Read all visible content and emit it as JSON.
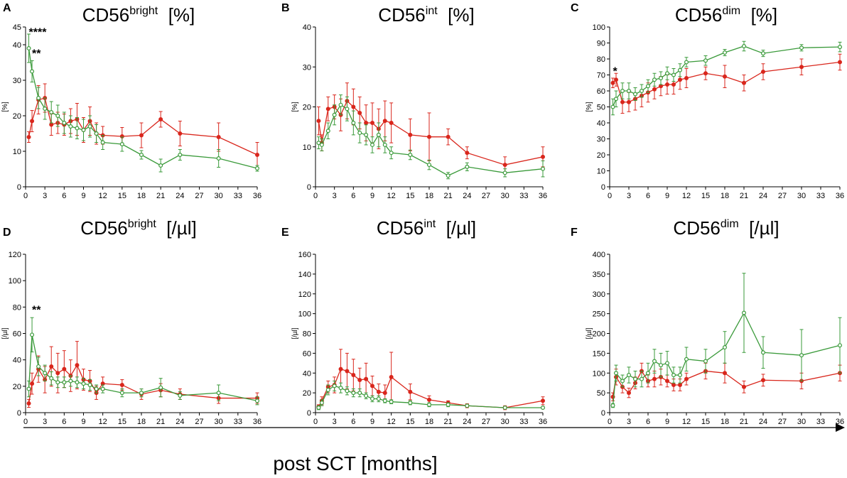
{
  "colors": {
    "red": "#d9261c",
    "green": "#3a9a3a",
    "axis": "#000000"
  },
  "x_caption": "post SCT [months]",
  "chart_data": [
    {
      "letter": "A",
      "type": "line",
      "title": {
        "base": "CD56",
        "sup": "bright",
        "unit": "[%]"
      },
      "ylabel": "[%]",
      "ylim": [
        0,
        45
      ],
      "yticks": [
        0,
        10,
        20,
        30,
        40,
        45
      ],
      "xlabel": "post SCT [months]",
      "xlim": [
        0,
        36
      ],
      "xticks": [
        0,
        3,
        6,
        9,
        12,
        15,
        18,
        21,
        24,
        27,
        30,
        33,
        36
      ],
      "x": [
        0.5,
        1,
        2,
        3,
        4,
        5,
        6,
        7,
        8,
        9,
        10,
        11,
        12,
        15,
        18,
        21,
        24,
        30,
        36
      ],
      "series": [
        {
          "name": "red",
          "color": "red",
          "marker": "filled",
          "values": [
            14,
            18.5,
            24.5,
            25,
            17.5,
            18,
            17.5,
            18.5,
            19,
            16,
            18.5,
            15,
            14.5,
            14.2,
            14.5,
            19,
            15,
            14,
            9
          ],
          "errors": [
            1.5,
            3,
            4,
            4,
            3,
            3,
            3,
            3.5,
            4.5,
            3.5,
            4,
            3,
            2.5,
            2.5,
            3.5,
            2.2,
            3.5,
            4,
            3.5
          ]
        },
        {
          "name": "green",
          "color": "green",
          "marker": "open",
          "values": [
            39,
            32.5,
            25,
            22,
            21,
            20,
            18,
            17,
            16.5,
            16,
            17,
            15,
            12.5,
            12,
            9,
            6,
            9,
            8,
            5.2
          ],
          "errors": [
            4,
            3,
            3,
            3,
            3,
            3,
            3,
            3,
            3,
            3,
            3,
            2.5,
            2,
            2,
            1.2,
            1.8,
            1.5,
            2.5,
            0.8
          ]
        }
      ],
      "annotations": [
        {
          "text": "****",
          "x": 0.5,
          "y": 42.5
        },
        {
          "text": "**",
          "x": 1,
          "y": 36.5
        }
      ]
    },
    {
      "letter": "B",
      "type": "line",
      "title": {
        "base": "CD56",
        "sup": "int",
        "unit": "[%]"
      },
      "ylabel": "[%]",
      "ylim": [
        0,
        40
      ],
      "yticks": [
        0,
        10,
        20,
        30,
        40
      ],
      "xlabel": "post SCT [months]",
      "xlim": [
        0,
        36
      ],
      "xticks": [
        0,
        3,
        6,
        9,
        12,
        15,
        18,
        21,
        24,
        27,
        30,
        33,
        36
      ],
      "x": [
        0.5,
        1,
        2,
        3,
        4,
        5,
        6,
        7,
        8,
        9,
        10,
        11,
        12,
        15,
        18,
        21,
        24,
        30,
        36
      ],
      "series": [
        {
          "name": "red",
          "color": "red",
          "marker": "filled",
          "values": [
            16.5,
            11,
            19.5,
            20,
            18,
            21.5,
            20,
            18.5,
            16,
            16,
            14.5,
            16.5,
            16,
            13,
            12.5,
            12.5,
            8.5,
            5.5,
            7.5
          ],
          "errors": [
            3.5,
            2,
            3,
            3,
            4,
            4.5,
            4.5,
            4,
            4.5,
            5,
            5,
            5,
            5,
            4,
            6,
            2,
            1.5,
            2,
            2.5
          ]
        },
        {
          "name": "green",
          "color": "green",
          "marker": "open",
          "values": [
            11,
            10.5,
            14,
            18,
            20.5,
            19.5,
            16,
            13.5,
            13,
            10.5,
            13,
            10.5,
            8.5,
            8,
            5.5,
            2.8,
            5,
            3.5,
            4.5
          ],
          "errors": [
            1.5,
            1.5,
            2,
            2.5,
            2.5,
            3,
            3,
            2.5,
            2.5,
            2,
            3,
            2,
            1.5,
            1.2,
            1.2,
            0.8,
            1,
            1,
            2
          ]
        }
      ],
      "annotations": []
    },
    {
      "letter": "C",
      "type": "line",
      "title": {
        "base": "CD56",
        "sup": "dim",
        "unit": "[%]"
      },
      "ylabel": "[%]",
      "ylim": [
        0,
        100
      ],
      "yticks": [
        0,
        10,
        20,
        30,
        40,
        50,
        60,
        70,
        80,
        90,
        100
      ],
      "xlabel": "post SCT [months]",
      "xlim": [
        0,
        36
      ],
      "xticks": [
        0,
        3,
        6,
        9,
        12,
        15,
        18,
        21,
        24,
        27,
        30,
        33,
        36
      ],
      "x": [
        0.5,
        1,
        2,
        3,
        4,
        5,
        6,
        7,
        8,
        9,
        10,
        11,
        12,
        15,
        18,
        21,
        24,
        30,
        36
      ],
      "series": [
        {
          "name": "red",
          "color": "red",
          "marker": "filled",
          "values": [
            65,
            67,
            53,
            53,
            55,
            57,
            59,
            61,
            63,
            64,
            64,
            67,
            68,
            71,
            69,
            65,
            72,
            75,
            78
          ],
          "errors": [
            3,
            4,
            7,
            6,
            7,
            7,
            6,
            6,
            6,
            6,
            6,
            6,
            6,
            4,
            7,
            5,
            5,
            5,
            5
          ]
        },
        {
          "name": "green",
          "color": "green",
          "marker": "open",
          "values": [
            50,
            55,
            60,
            60,
            58,
            60,
            63,
            67,
            68,
            71,
            70,
            73,
            78,
            79,
            84,
            88,
            83.5,
            87,
            87.5
          ],
          "errors": [
            5,
            5,
            5,
            5,
            4,
            4,
            4,
            4,
            4,
            4,
            4,
            4,
            3,
            3,
            2,
            3,
            2,
            2,
            3
          ]
        }
      ],
      "annotations": [
        {
          "text": "*",
          "x": 0.5,
          "y": 70
        }
      ]
    },
    {
      "letter": "D",
      "type": "line",
      "title": {
        "base": "CD56",
        "sup": "bright",
        "unit": "[/µl]"
      },
      "ylabel": "[/µl]",
      "ylim": [
        0,
        120
      ],
      "yticks": [
        0,
        20,
        40,
        60,
        80,
        100,
        120
      ],
      "xlabel": "post SCT [months]",
      "xlim": [
        0,
        36
      ],
      "xticks": [
        0,
        3,
        6,
        9,
        12,
        15,
        18,
        21,
        24,
        27,
        30,
        33,
        36
      ],
      "x": [
        0.5,
        1,
        2,
        3,
        4,
        5,
        6,
        7,
        8,
        9,
        10,
        11,
        12,
        15,
        18,
        21,
        24,
        30,
        36
      ],
      "series": [
        {
          "name": "red",
          "color": "red",
          "marker": "filled",
          "values": [
            7,
            22,
            33,
            25,
            35,
            30,
            33,
            28,
            36,
            25,
            24,
            15,
            22,
            21,
            14,
            17,
            14,
            11,
            11
          ],
          "errors": [
            3,
            8,
            10,
            10,
            15,
            15,
            14,
            12,
            18,
            8,
            8,
            5,
            5,
            4,
            4,
            5,
            4,
            4,
            4
          ]
        },
        {
          "name": "green",
          "color": "green",
          "marker": "open",
          "values": [
            18,
            59,
            35,
            30,
            26,
            23,
            23,
            24,
            23,
            22,
            21,
            18,
            18,
            15,
            15,
            19,
            13,
            15,
            9
          ],
          "errors": [
            6,
            13,
            7,
            6,
            5,
            4,
            4,
            4,
            4,
            4,
            4,
            3,
            3,
            3,
            3,
            7,
            3,
            6,
            3
          ]
        }
      ],
      "annotations": [
        {
          "text": "**",
          "x": 1,
          "y": 75
        }
      ]
    },
    {
      "letter": "E",
      "type": "line",
      "title": {
        "base": "CD56",
        "sup": "int",
        "unit": "[/µl]"
      },
      "ylabel": "[/µl]",
      "ylim": [
        0,
        160
      ],
      "yticks": [
        0,
        20,
        40,
        60,
        80,
        100,
        120,
        140,
        160
      ],
      "xlabel": "post SCT [months]",
      "xlim": [
        0,
        36
      ],
      "xticks": [
        0,
        3,
        6,
        9,
        12,
        15,
        18,
        21,
        24,
        27,
        30,
        33,
        36
      ],
      "x": [
        0.5,
        1,
        2,
        3,
        4,
        5,
        6,
        7,
        8,
        9,
        10,
        11,
        12,
        15,
        18,
        21,
        24,
        30,
        36
      ],
      "series": [
        {
          "name": "red",
          "color": "red",
          "marker": "filled",
          "values": [
            6,
            12,
            26,
            28,
            44,
            42,
            38,
            33,
            34,
            27,
            21,
            20,
            36,
            21,
            13,
            10,
            7,
            5,
            12
          ],
          "errors": [
            2,
            4,
            6,
            8,
            20,
            18,
            16,
            12,
            16,
            10,
            8,
            8,
            25,
            8,
            4,
            2,
            2,
            2,
            4
          ]
        },
        {
          "name": "green",
          "color": "green",
          "marker": "open",
          "values": [
            5,
            10,
            23,
            27,
            25,
            22,
            20,
            20,
            17,
            14,
            14,
            12,
            11,
            10,
            8,
            8,
            7,
            5,
            5
          ],
          "errors": [
            2,
            3,
            5,
            5,
            5,
            4,
            4,
            4,
            3,
            3,
            3,
            2,
            2,
            2,
            2,
            2,
            1,
            1,
            1
          ]
        }
      ],
      "annotations": []
    },
    {
      "letter": "F",
      "type": "line",
      "title": {
        "base": "CD56",
        "sup": "dim",
        "unit": "[/µl]"
      },
      "ylabel": "[/µl]",
      "ylim": [
        0,
        400
      ],
      "yticks": [
        0,
        50,
        100,
        150,
        200,
        250,
        300,
        350,
        400
      ],
      "xlabel": "post SCT [months]",
      "xlim": [
        0,
        36
      ],
      "xticks": [
        0,
        3,
        6,
        9,
        12,
        15,
        18,
        21,
        24,
        27,
        30,
        33,
        36
      ],
      "x": [
        0.5,
        1,
        2,
        3,
        4,
        5,
        6,
        7,
        8,
        9,
        10,
        11,
        12,
        15,
        18,
        21,
        24,
        30,
        36
      ],
      "series": [
        {
          "name": "red",
          "color": "red",
          "marker": "filled",
          "values": [
            40,
            90,
            65,
            50,
            75,
            105,
            80,
            85,
            90,
            80,
            70,
            70,
            85,
            105,
            100,
            65,
            82,
            80,
            100
          ],
          "errors": [
            10,
            20,
            15,
            12,
            15,
            20,
            15,
            20,
            20,
            15,
            15,
            15,
            15,
            20,
            25,
            15,
            15,
            20,
            20
          ]
        },
        {
          "name": "green",
          "color": "green",
          "marker": "open",
          "values": [
            18,
            100,
            80,
            95,
            85,
            85,
            100,
            130,
            120,
            125,
            95,
            95,
            135,
            130,
            165,
            252,
            152,
            145,
            170
          ],
          "errors": [
            5,
            20,
            15,
            20,
            20,
            20,
            25,
            30,
            30,
            30,
            20,
            20,
            30,
            30,
            40,
            100,
            40,
            65,
            70
          ]
        }
      ],
      "annotations": []
    }
  ]
}
